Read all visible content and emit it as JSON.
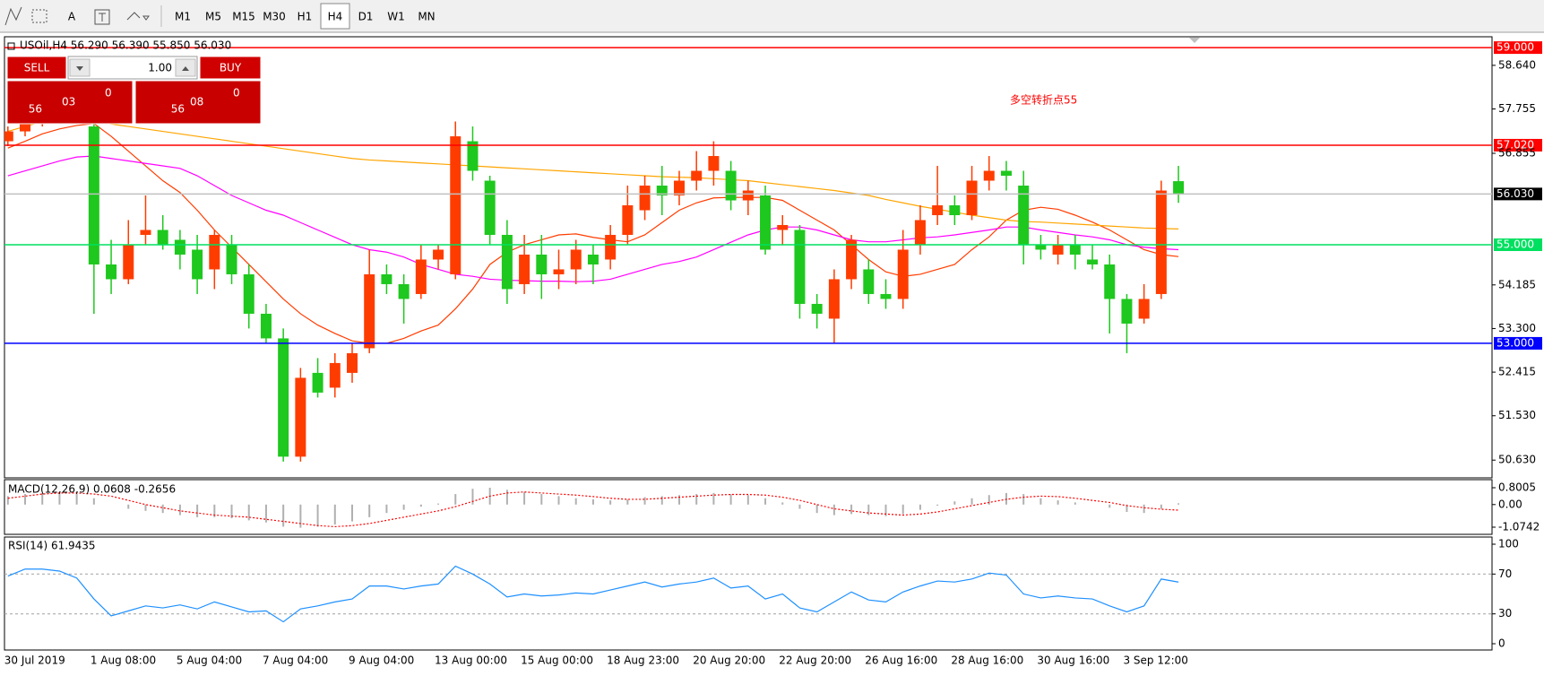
{
  "toolbar": {
    "text_tool": "A",
    "timeframes": [
      "M1",
      "M5",
      "M15",
      "M30",
      "H1",
      "H4",
      "D1",
      "W1",
      "MN"
    ],
    "active": "H4"
  },
  "trade_panel": {
    "sell": "SELL",
    "buy": "BUY",
    "lot": "1.00",
    "sell_price": {
      "big": "56",
      "main": "03",
      "small": "0"
    },
    "buy_price": {
      "big": "56",
      "main": "08",
      "small": "0"
    }
  },
  "chart_data": [
    {
      "type": "candlestick",
      "title": "USOil,H4  56.290 56.390 55.850 56.030",
      "annotation": "多空转折点55",
      "categories": [
        "30 Jul 2019",
        null,
        null,
        null,
        null,
        "1 Aug 08:00",
        null,
        null,
        null,
        null,
        "5 Aug 04:00",
        null,
        null,
        null,
        null,
        "7 Aug 04:00",
        null,
        null,
        null,
        null,
        "9 Aug 04:00",
        null,
        null,
        null,
        null,
        "13 Aug 00:00",
        null,
        null,
        null,
        null,
        "15 Aug 00:00",
        null,
        null,
        null,
        null,
        "18 Aug 23:00",
        null,
        null,
        null,
        null,
        "20 Aug 20:00",
        null,
        null,
        null,
        null,
        "22 Aug 20:00",
        null,
        null,
        null,
        null,
        "26 Aug 16:00",
        null,
        null,
        null,
        null,
        "28 Aug 16:00",
        null,
        null,
        null,
        null,
        "30 Aug 16:00",
        null,
        null,
        null,
        null,
        "3 Sep 12:00",
        null,
        null,
        null
      ],
      "open": [
        57.1,
        57.3,
        57.5,
        57.7,
        57.8,
        57.4,
        54.6,
        54.3,
        55.2,
        55.3,
        55.1,
        54.9,
        54.5,
        55.0,
        54.4,
        53.6,
        53.1,
        50.7,
        52.4,
        52.1,
        52.4,
        52.9,
        54.4,
        54.2,
        54.0,
        54.7,
        54.4,
        57.1,
        56.3,
        55.2,
        54.2,
        54.8,
        54.4,
        54.5,
        54.8,
        54.7,
        55.2,
        55.7,
        56.2,
        56.0,
        56.3,
        56.5,
        56.5,
        55.9,
        56.0,
        55.3,
        55.3,
        53.8,
        53.5,
        54.3,
        54.5,
        54.0,
        53.9,
        55.0,
        55.6,
        55.8,
        55.6,
        56.3,
        56.5,
        56.2,
        55.0,
        54.8,
        55.0,
        54.7,
        54.6,
        53.9,
        53.5,
        54.0,
        56.29
      ],
      "high": [
        57.4,
        57.6,
        57.8,
        57.9,
        57.9,
        57.6,
        55.1,
        55.5,
        56.0,
        55.6,
        55.3,
        55.2,
        55.3,
        55.2,
        54.6,
        53.8,
        53.3,
        52.5,
        52.7,
        52.8,
        53.0,
        54.9,
        54.6,
        54.4,
        55.0,
        55.0,
        57.5,
        57.4,
        56.4,
        55.5,
        55.2,
        55.2,
        54.9,
        55.1,
        55.0,
        55.4,
        56.2,
        56.4,
        56.6,
        56.5,
        56.9,
        57.1,
        56.7,
        56.3,
        56.2,
        55.6,
        55.4,
        54.0,
        54.5,
        55.2,
        54.7,
        54.3,
        55.3,
        55.8,
        56.6,
        56.0,
        56.6,
        56.8,
        56.7,
        56.5,
        55.2,
        55.2,
        55.2,
        55.0,
        54.8,
        54.0,
        54.2,
        56.3,
        56.6
      ],
      "low": [
        57.0,
        57.2,
        57.4,
        57.6,
        57.5,
        53.6,
        54.0,
        54.2,
        55.0,
        54.9,
        54.5,
        54.0,
        54.1,
        54.2,
        53.3,
        53.0,
        50.6,
        50.6,
        51.9,
        51.9,
        52.2,
        52.8,
        54.0,
        53.4,
        53.9,
        54.5,
        54.3,
        56.3,
        55.0,
        53.8,
        54.0,
        53.9,
        54.1,
        54.2,
        54.2,
        54.5,
        55.0,
        55.5,
        55.6,
        55.8,
        56.1,
        56.2,
        55.7,
        55.6,
        54.8,
        55.0,
        53.5,
        53.3,
        53.0,
        54.1,
        53.8,
        53.7,
        53.7,
        54.8,
        55.4,
        55.4,
        55.5,
        56.1,
        56.1,
        54.6,
        54.7,
        54.6,
        54.5,
        54.5,
        53.2,
        52.8,
        53.4,
        53.9,
        55.85
      ],
      "close": [
        57.3,
        57.5,
        57.7,
        57.8,
        57.6,
        54.6,
        54.3,
        55.0,
        55.3,
        55.0,
        54.8,
        54.3,
        55.2,
        54.4,
        53.6,
        53.1,
        50.7,
        52.3,
        52.0,
        52.6,
        52.8,
        54.4,
        54.2,
        53.9,
        54.7,
        54.9,
        57.2,
        56.5,
        55.2,
        54.1,
        54.8,
        54.4,
        54.5,
        54.9,
        54.6,
        55.2,
        55.8,
        56.2,
        56.0,
        56.3,
        56.5,
        56.8,
        55.9,
        56.1,
        54.9,
        55.4,
        53.8,
        53.6,
        54.3,
        55.1,
        54.0,
        53.9,
        54.9,
        55.5,
        55.8,
        55.6,
        56.3,
        56.5,
        56.4,
        55.0,
        54.9,
        55.0,
        54.8,
        54.6,
        53.9,
        53.4,
        53.9,
        56.1,
        56.03
      ],
      "up_color": "#ff3c00",
      "down_color": "#1ec81e",
      "overlays": [
        {
          "color": "#ff3c00",
          "values": [
            56.96,
            57.1,
            57.25,
            57.35,
            57.42,
            57.46,
            57.2,
            56.9,
            56.6,
            56.3,
            56.06,
            55.7,
            55.3,
            54.95,
            54.6,
            54.25,
            53.9,
            53.6,
            53.37,
            53.2,
            53.05,
            53.0,
            53.0,
            53.1,
            53.25,
            53.37,
            53.7,
            54.1,
            54.6,
            54.85,
            55.0,
            55.1,
            55.2,
            55.22,
            55.15,
            55.1,
            55.06,
            55.2,
            55.45,
            55.7,
            55.85,
            55.95,
            55.96,
            55.96,
            55.96,
            55.9,
            55.7,
            55.5,
            55.3,
            55.0,
            54.7,
            54.45,
            54.36,
            54.4,
            54.5,
            54.6,
            54.9,
            55.16,
            55.5,
            55.7,
            55.76,
            55.72,
            55.6,
            55.46,
            55.3,
            55.1,
            54.9,
            54.8,
            54.76
          ]
        },
        {
          "color": "#ff00ff",
          "values": [
            56.4,
            56.5,
            56.6,
            56.7,
            56.78,
            56.8,
            56.75,
            56.7,
            56.65,
            56.6,
            56.55,
            56.4,
            56.2,
            56.0,
            55.85,
            55.7,
            55.6,
            55.45,
            55.3,
            55.15,
            55.0,
            54.9,
            54.85,
            54.75,
            54.6,
            54.5,
            54.4,
            54.36,
            54.3,
            54.28,
            54.27,
            54.26,
            54.26,
            54.25,
            54.26,
            54.3,
            54.4,
            54.5,
            54.6,
            54.66,
            54.75,
            54.9,
            55.05,
            55.2,
            55.3,
            55.36,
            55.36,
            55.3,
            55.2,
            55.1,
            55.06,
            55.06,
            55.1,
            55.14,
            55.16,
            55.2,
            55.25,
            55.3,
            55.36,
            55.36,
            55.3,
            55.25,
            55.2,
            55.16,
            55.1,
            55.0,
            54.95,
            54.92,
            54.9
          ]
        },
        {
          "color": "#ffa500",
          "values": [
            57.3,
            57.4,
            57.5,
            57.55,
            57.55,
            57.5,
            57.45,
            57.4,
            57.35,
            57.3,
            57.25,
            57.2,
            57.15,
            57.1,
            57.05,
            57.0,
            56.95,
            56.9,
            56.85,
            56.8,
            56.75,
            56.72,
            56.7,
            56.68,
            56.66,
            56.64,
            56.62,
            56.6,
            56.58,
            56.56,
            56.54,
            56.52,
            56.5,
            56.48,
            56.46,
            56.44,
            56.42,
            56.4,
            56.38,
            56.37,
            56.36,
            56.34,
            56.32,
            56.3,
            56.26,
            56.22,
            56.18,
            56.14,
            56.1,
            56.05,
            56.0,
            55.92,
            55.85,
            55.78,
            55.72,
            55.66,
            55.6,
            55.55,
            55.5,
            55.47,
            55.46,
            55.44,
            55.42,
            55.4,
            55.38,
            55.36,
            55.34,
            55.33,
            55.32
          ]
        }
      ],
      "ylim": [
        50.27,
        59.22
      ],
      "yticks": [
        {
          "value": 58.64,
          "label": "58.640"
        },
        {
          "value": 57.755,
          "label": "57.755"
        },
        {
          "value": 56.855,
          "label": "56.855"
        },
        {
          "value": 54.185,
          "label": "54.185"
        },
        {
          "value": 53.3,
          "label": "53.300"
        },
        {
          "value": 52.415,
          "label": "52.415"
        },
        {
          "value": 51.53,
          "label": "51.530"
        },
        {
          "value": 50.63,
          "label": "50.630"
        }
      ],
      "levels": [
        {
          "value": 59,
          "label": "59.000",
          "color": "#ff0000",
          "line_color": "#ff0000"
        },
        {
          "value": 57.02,
          "label": "57.020",
          "color": "#ff0000",
          "line_color": "#ff0000"
        },
        {
          "value": 56.03,
          "label": "56.030",
          "color": "#000000",
          "line_color": "#c0c0c0"
        },
        {
          "value": 55,
          "label": "55.000",
          "color": "#00e060",
          "line_color": "#00e060"
        },
        {
          "value": 53,
          "label": "53.000",
          "color": "#0000ff",
          "line_color": "#0000ff"
        }
      ]
    },
    {
      "type": "macd",
      "title": "MACD(12,26,9) 0.0608 -0.2656",
      "histogram": [
        0.4,
        0.5,
        0.55,
        0.55,
        0.5,
        0.3,
        0.0,
        -0.2,
        -0.3,
        -0.4,
        -0.5,
        -0.6,
        -0.6,
        -0.65,
        -0.75,
        -0.85,
        -1.05,
        -1.1,
        -1.05,
        -0.95,
        -0.8,
        -0.6,
        -0.4,
        -0.25,
        -0.1,
        0.05,
        0.5,
        0.75,
        0.8,
        0.7,
        0.6,
        0.5,
        0.4,
        0.3,
        0.25,
        0.2,
        0.25,
        0.35,
        0.4,
        0.45,
        0.5,
        0.55,
        0.5,
        0.45,
        0.3,
        0.1,
        -0.2,
        -0.4,
        -0.5,
        -0.45,
        -0.5,
        -0.55,
        -0.45,
        -0.25,
        -0.05,
        0.15,
        0.3,
        0.45,
        0.55,
        0.5,
        0.3,
        0.2,
        0.1,
        0.0,
        -0.15,
        -0.35,
        -0.4,
        -0.2,
        0.0608
      ],
      "signal": [
        0.3,
        0.4,
        0.5,
        0.55,
        0.55,
        0.5,
        0.4,
        0.2,
        0.0,
        -0.15,
        -0.3,
        -0.4,
        -0.5,
        -0.55,
        -0.6,
        -0.7,
        -0.8,
        -0.9,
        -1.0,
        -1.05,
        -1.0,
        -0.9,
        -0.75,
        -0.6,
        -0.45,
        -0.3,
        -0.1,
        0.15,
        0.4,
        0.55,
        0.6,
        0.55,
        0.5,
        0.45,
        0.38,
        0.3,
        0.25,
        0.25,
        0.3,
        0.35,
        0.4,
        0.45,
        0.48,
        0.48,
        0.45,
        0.35,
        0.2,
        0.0,
        -0.2,
        -0.3,
        -0.4,
        -0.45,
        -0.5,
        -0.45,
        -0.35,
        -0.2,
        -0.05,
        0.1,
        0.25,
        0.35,
        0.4,
        0.38,
        0.3,
        0.2,
        0.1,
        -0.05,
        -0.15,
        -0.22,
        -0.2656
      ],
      "histogram_color": "#b0b0b0",
      "signal_color": "#ff0000",
      "ylim": [
        -1.415,
        1.184
      ],
      "yticks": [
        0.8005,
        {
          "value": 0,
          "label": "0.00"
        },
        -1.0742
      ]
    },
    {
      "type": "line",
      "title": "RSI(14) 61.9435",
      "values": [
        68,
        75,
        75,
        73,
        66,
        45,
        28,
        33,
        38,
        36,
        39,
        35,
        42,
        37,
        32,
        33,
        22,
        35,
        38,
        42,
        45,
        58,
        58,
        55,
        58,
        60,
        78,
        70,
        60,
        47,
        50,
        48,
        49,
        51,
        50,
        54,
        58,
        62,
        57,
        60,
        62,
        66,
        56,
        58,
        45,
        50,
        36,
        32,
        42,
        52,
        44,
        42,
        52,
        58,
        63,
        62,
        65,
        71,
        69,
        50,
        46,
        48,
        46,
        45,
        38,
        32,
        38,
        65,
        61.9435
      ],
      "color": "#1e90ff",
      "ylim": [
        -6.3,
        107.2
      ],
      "yticks": [
        100,
        70,
        30,
        0
      ],
      "dashed_levels": [
        70,
        30
      ]
    }
  ]
}
